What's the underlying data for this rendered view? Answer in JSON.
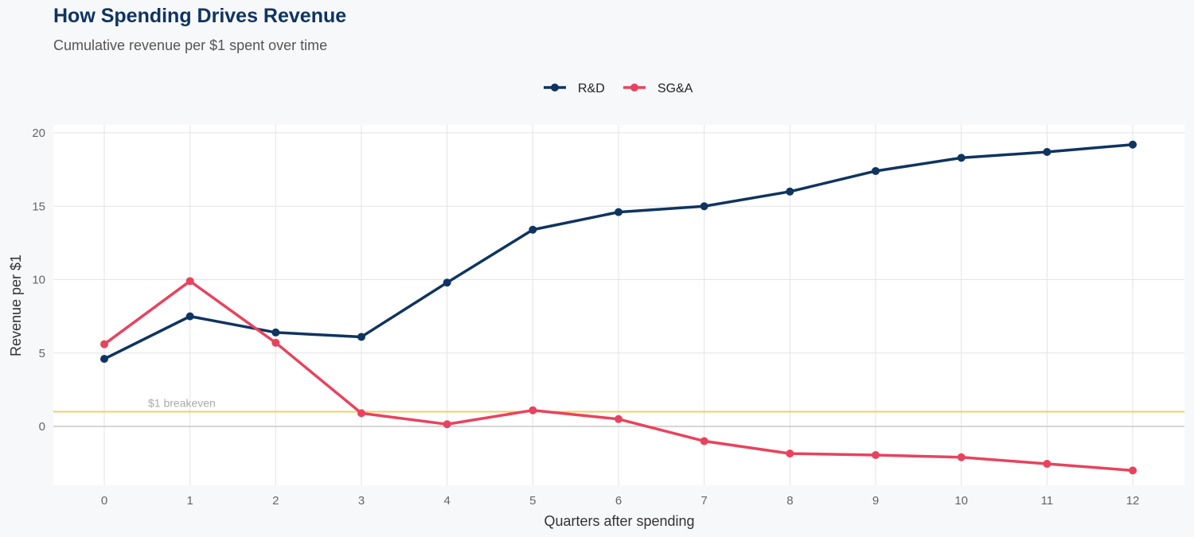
{
  "chart_data": {
    "type": "line",
    "title": "How Spending Drives Revenue",
    "subtitle": "Cumulative revenue per $1 spent over time",
    "xlabel": "Quarters after spending",
    "ylabel": "Revenue per $1",
    "x": [
      0,
      1,
      2,
      3,
      4,
      5,
      6,
      7,
      8,
      9,
      10,
      11,
      12
    ],
    "xticks": [
      "0",
      "1",
      "2",
      "3",
      "4",
      "5",
      "6",
      "7",
      "8",
      "9",
      "10",
      "11",
      "12"
    ],
    "yticks": [
      "0",
      "5",
      "10",
      "15",
      "20"
    ],
    "ylim": [
      -4,
      20.5
    ],
    "xlim": [
      -0.6,
      12.6
    ],
    "grid": true,
    "legend_position": "top",
    "series": [
      {
        "name": "R&D",
        "color": "#0f3460",
        "values": [
          4.6,
          7.5,
          6.4,
          6.1,
          9.8,
          13.4,
          14.6,
          15.0,
          16.0,
          17.4,
          18.3,
          18.7,
          19.2
        ]
      },
      {
        "name": "SG&A",
        "color": "#e8435e",
        "values": [
          5.6,
          9.9,
          5.7,
          0.9,
          0.15,
          1.1,
          0.5,
          -1.0,
          -1.85,
          -1.95,
          -2.1,
          -2.55,
          -3.0
        ]
      }
    ],
    "reference_line": {
      "y": 1,
      "label": "$1 breakeven",
      "color": "#f5cd6a"
    }
  }
}
